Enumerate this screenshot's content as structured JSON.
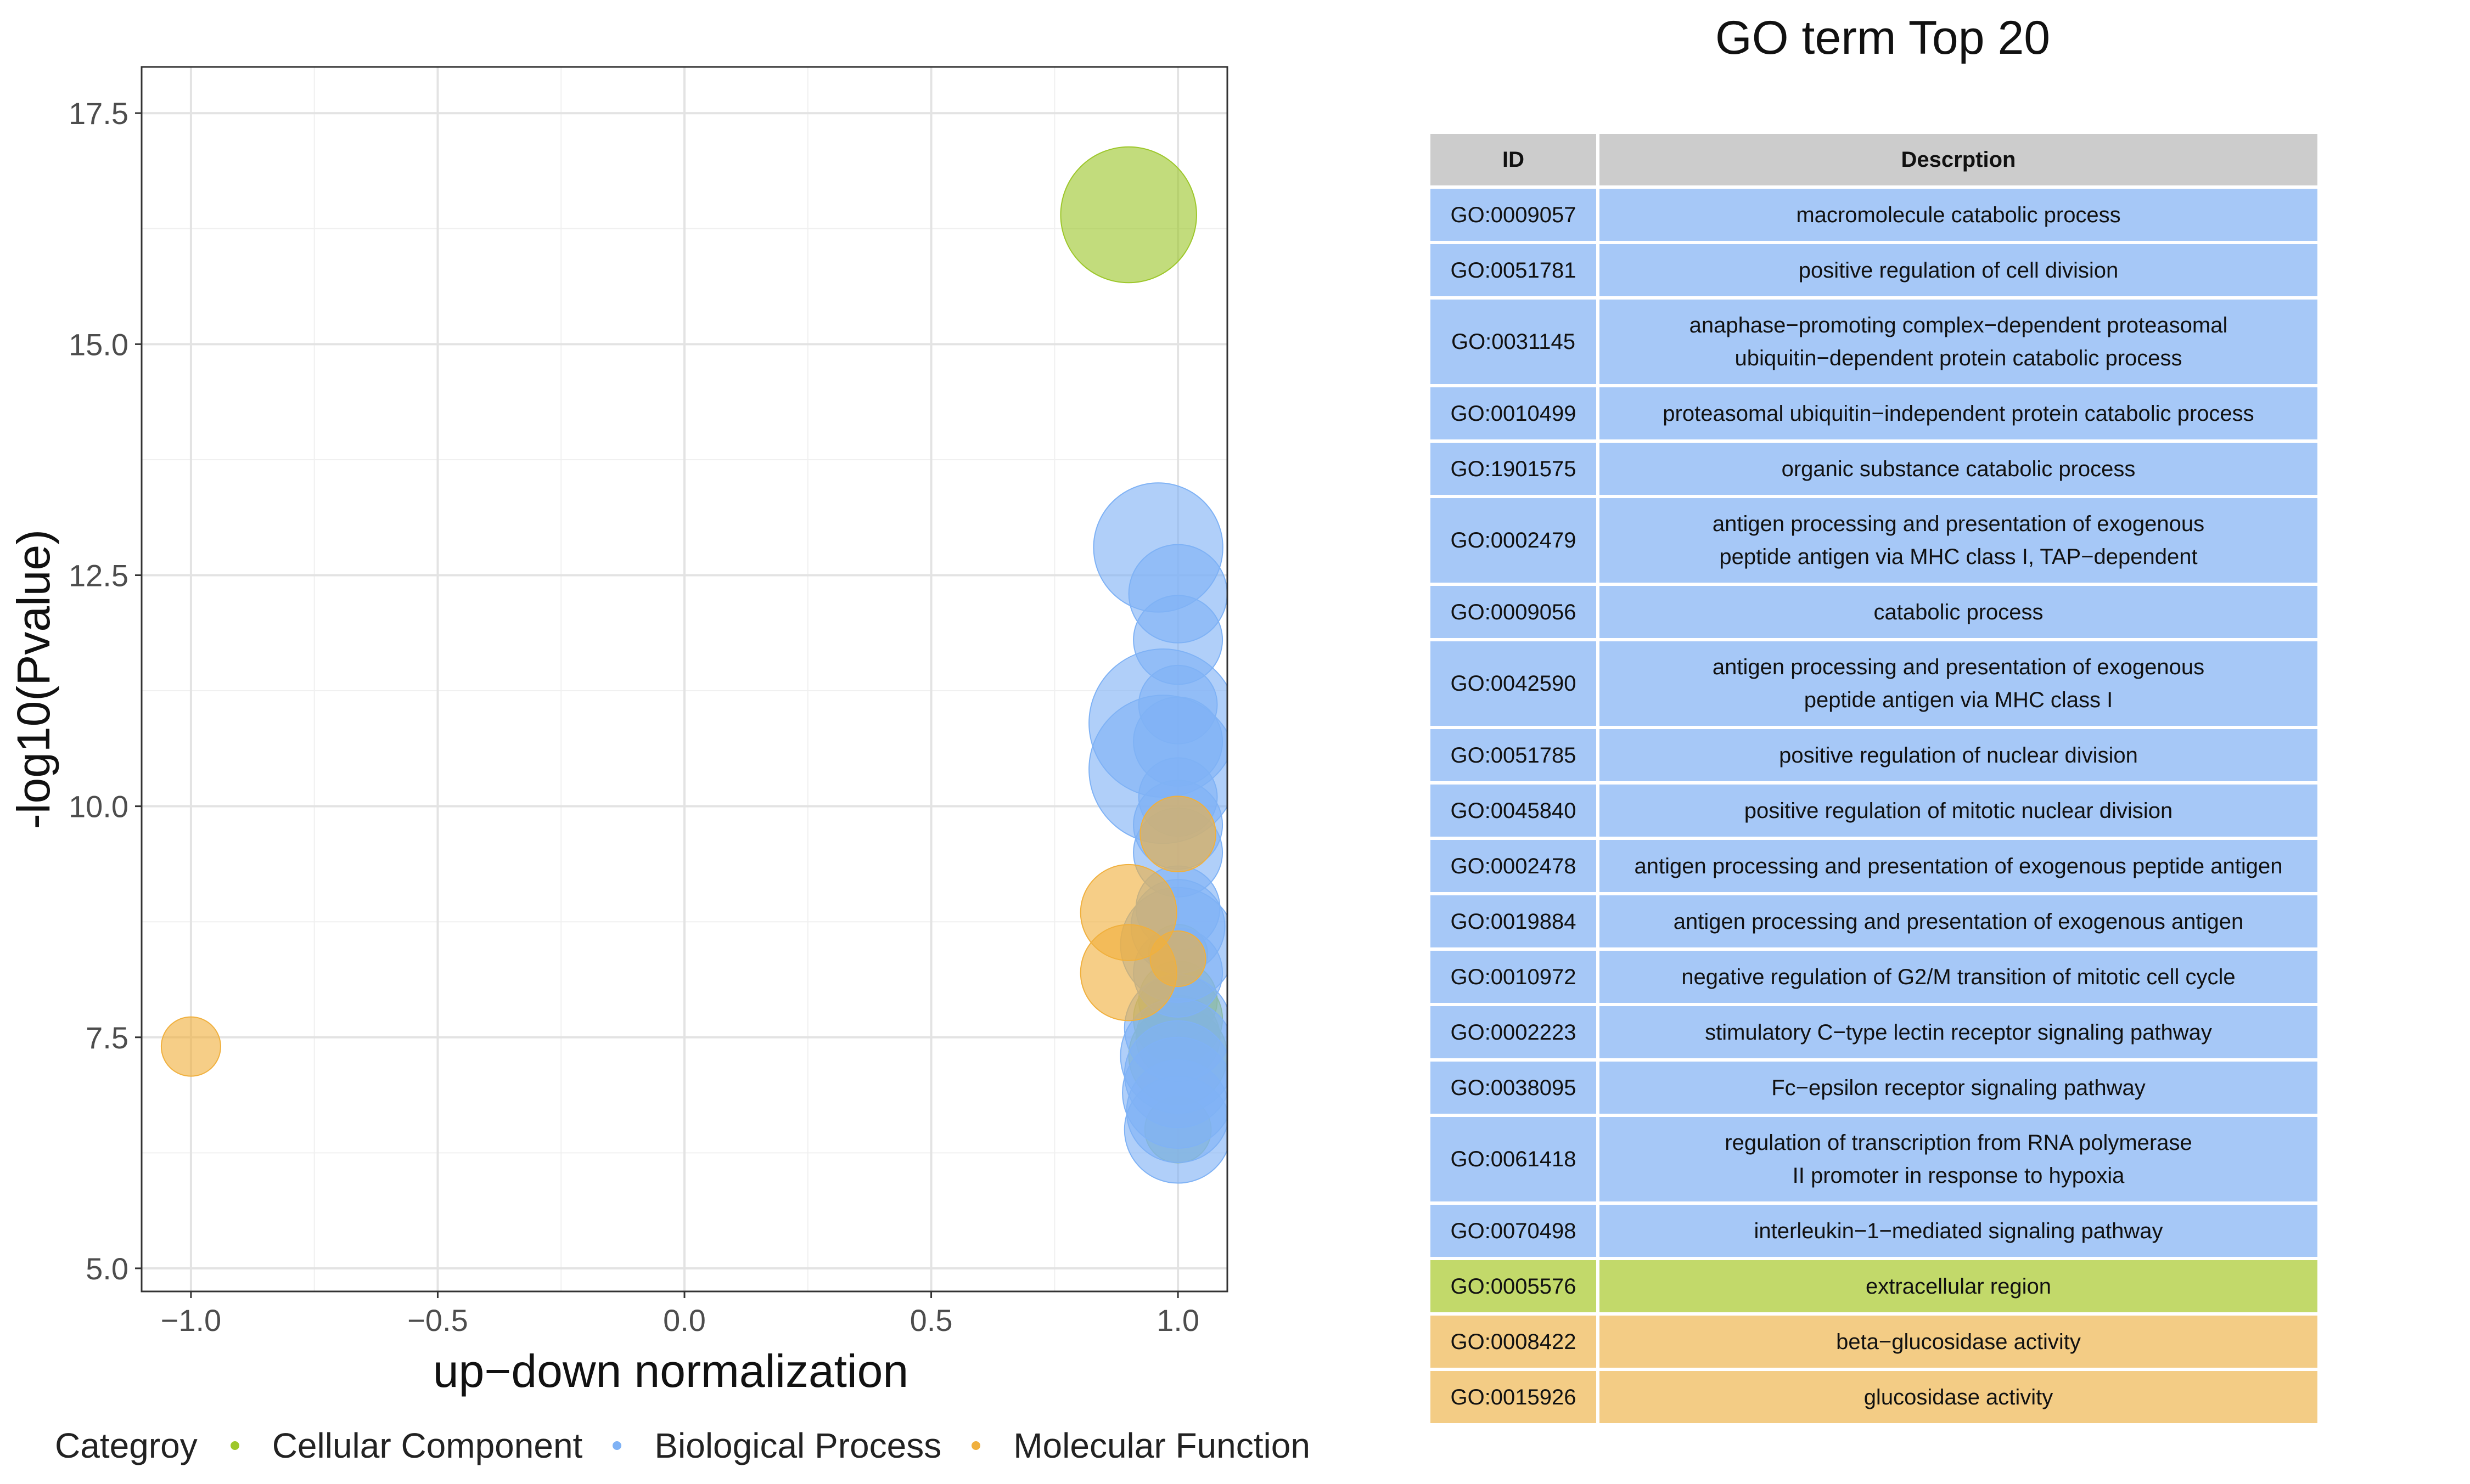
{
  "chart_data": {
    "type": "scatter",
    "xlabel": "up−down normalization",
    "ylabel": "-log10(Pvalue)",
    "xlim": [
      -1.1,
      1.1
    ],
    "ylim": [
      4.75,
      18.0
    ],
    "xticks": [
      -1.0,
      -0.5,
      0.0,
      0.5,
      1.0
    ],
    "xtick_labels": [
      "−1.0",
      "−0.5",
      "0.0",
      "0.5",
      "1.0"
    ],
    "yticks": [
      5.0,
      7.5,
      10.0,
      12.5,
      15.0,
      17.5
    ],
    "ytick_labels": [
      "5.0",
      "7.5",
      "10.0",
      "12.5",
      "15.0",
      "17.5"
    ],
    "grid": true,
    "legend_placement": "bottom",
    "series": [
      {
        "name": "Cellular Component",
        "color": "#9dc72b",
        "points": [
          {
            "x": 0.9,
            "y": 16.4,
            "size": 420
          },
          {
            "x": 1.0,
            "y": 8.4,
            "size": 80
          },
          {
            "x": 1.0,
            "y": 7.9,
            "size": 140
          },
          {
            "x": 1.0,
            "y": 7.7,
            "size": 180
          },
          {
            "x": 1.0,
            "y": 7.5,
            "size": 160
          },
          {
            "x": 1.0,
            "y": 7.3,
            "size": 220
          },
          {
            "x": 1.0,
            "y": 6.5,
            "size": 100
          }
        ]
      },
      {
        "name": "Biological Process",
        "color": "#7fb2f5",
        "points": [
          {
            "x": 0.96,
            "y": 12.8,
            "size": 380
          },
          {
            "x": 1.0,
            "y": 12.3,
            "size": 220
          },
          {
            "x": 1.0,
            "y": 11.8,
            "size": 180
          },
          {
            "x": 1.0,
            "y": 11.1,
            "size": 140
          },
          {
            "x": 0.97,
            "y": 10.9,
            "size": 500
          },
          {
            "x": 0.97,
            "y": 10.4,
            "size": 500
          },
          {
            "x": 1.0,
            "y": 10.7,
            "size": 180
          },
          {
            "x": 1.0,
            "y": 10.1,
            "size": 140
          },
          {
            "x": 1.0,
            "y": 9.8,
            "size": 180
          },
          {
            "x": 1.0,
            "y": 9.5,
            "size": 180
          },
          {
            "x": 1.0,
            "y": 8.9,
            "size": 160
          },
          {
            "x": 1.0,
            "y": 8.7,
            "size": 200
          },
          {
            "x": 1.0,
            "y": 8.5,
            "size": 300
          },
          {
            "x": 1.0,
            "y": 8.2,
            "size": 180
          },
          {
            "x": 1.0,
            "y": 7.6,
            "size": 260
          },
          {
            "x": 1.0,
            "y": 7.3,
            "size": 300
          },
          {
            "x": 1.0,
            "y": 7.1,
            "size": 260
          },
          {
            "x": 1.0,
            "y": 6.9,
            "size": 280
          },
          {
            "x": 1.0,
            "y": 6.7,
            "size": 240
          },
          {
            "x": 1.0,
            "y": 6.5,
            "size": 260
          }
        ]
      },
      {
        "name": "Molecular Function",
        "color": "#f0b03e",
        "points": [
          {
            "x": -1.0,
            "y": 7.4,
            "size": 80
          },
          {
            "x": 0.9,
            "y": 8.85,
            "size": 210
          },
          {
            "x": 0.9,
            "y": 8.2,
            "size": 210
          },
          {
            "x": 1.0,
            "y": 9.7,
            "size": 130
          },
          {
            "x": 1.0,
            "y": 8.35,
            "size": 70
          }
        ]
      }
    ],
    "table": {
      "title": "GO term Top 20",
      "columns": [
        "ID",
        "Descrption"
      ],
      "rows": [
        {
          "id": "GO:0009057",
          "desc": [
            "macromolecule catabolic process"
          ],
          "category": "Biological Process"
        },
        {
          "id": "GO:0051781",
          "desc": [
            "positive regulation of cell division"
          ],
          "category": "Biological Process"
        },
        {
          "id": "GO:0031145",
          "desc": [
            "anaphase−promoting complex−dependent proteasomal",
            "ubiquitin−dependent protein catabolic process"
          ],
          "category": "Biological Process"
        },
        {
          "id": "GO:0010499",
          "desc": [
            "proteasomal ubiquitin−independent protein catabolic process"
          ],
          "category": "Biological Process"
        },
        {
          "id": "GO:1901575",
          "desc": [
            "organic substance catabolic process"
          ],
          "category": "Biological Process"
        },
        {
          "id": "GO:0002479",
          "desc": [
            "antigen processing and presentation of exogenous",
            "peptide antigen via MHC class I, TAP−dependent"
          ],
          "category": "Biological Process"
        },
        {
          "id": "GO:0009056",
          "desc": [
            "catabolic process"
          ],
          "category": "Biological Process"
        },
        {
          "id": "GO:0042590",
          "desc": [
            "antigen processing and presentation of exogenous",
            "peptide antigen via MHC class I"
          ],
          "category": "Biological Process"
        },
        {
          "id": "GO:0051785",
          "desc": [
            "positive regulation of nuclear division"
          ],
          "category": "Biological Process"
        },
        {
          "id": "GO:0045840",
          "desc": [
            "positive regulation of mitotic nuclear division"
          ],
          "category": "Biological Process"
        },
        {
          "id": "GO:0002478",
          "desc": [
            "antigen processing and presentation of exogenous peptide antigen"
          ],
          "category": "Biological Process"
        },
        {
          "id": "GO:0019884",
          "desc": [
            "antigen processing and presentation of exogenous antigen"
          ],
          "category": "Biological Process"
        },
        {
          "id": "GO:0010972",
          "desc": [
            "negative regulation of G2/M transition of mitotic cell cycle"
          ],
          "category": "Biological Process"
        },
        {
          "id": "GO:0002223",
          "desc": [
            "stimulatory C−type lectin receptor signaling pathway"
          ],
          "category": "Biological Process"
        },
        {
          "id": "GO:0038095",
          "desc": [
            "Fc−epsilon receptor signaling pathway"
          ],
          "category": "Biological Process"
        },
        {
          "id": "GO:0061418",
          "desc": [
            "regulation of transcription from RNA polymerase",
            "II promoter in response to hypoxia"
          ],
          "category": "Biological Process"
        },
        {
          "id": "GO:0070498",
          "desc": [
            "interleukin−1−mediated signaling pathway"
          ],
          "category": "Biological Process"
        },
        {
          "id": "GO:0005576",
          "desc": [
            "extracellular region"
          ],
          "category": "Cellular Component"
        },
        {
          "id": "GO:0008422",
          "desc": [
            "beta−glucosidase activity"
          ],
          "category": "Molecular Function"
        },
        {
          "id": "GO:0015926",
          "desc": [
            "glucosidase activity"
          ],
          "category": "Molecular Function"
        }
      ]
    }
  },
  "legend": {
    "title": "Categroy",
    "items": [
      {
        "label": "Cellular Component",
        "color": "#9dc72b"
      },
      {
        "label": "Biological Process",
        "color": "#7fb2f5"
      },
      {
        "label": "Molecular Function",
        "color": "#f0b03e"
      }
    ]
  },
  "table_colors": {
    "header": "#cccccc",
    "Biological Process": "#a6c8f7",
    "Cellular Component": "#c2d96a",
    "Molecular Function": "#f3cc85"
  }
}
